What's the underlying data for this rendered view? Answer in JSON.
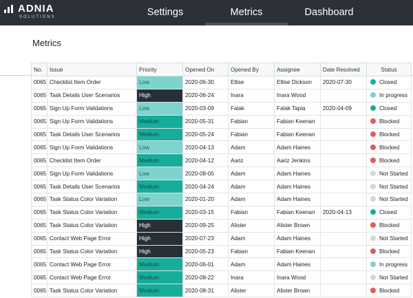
{
  "header": {
    "logo": "ADNIA",
    "logo_sub": "SOLUTIONS",
    "nav": [
      "Settings",
      "Metrics",
      "Dashboard"
    ],
    "active": 1
  },
  "page_title": "Metrics",
  "table": {
    "columns": [
      "No.",
      "Issue",
      "Priority",
      "Opened On",
      "Opened By",
      "Assignee",
      "Date Resolved",
      "Status"
    ],
    "rows": [
      [
        "0065",
        "Checklist Item Order",
        "Low",
        "2020-06-30",
        "Ellise",
        "Ellise Dickson",
        "2020-07-30",
        "Closed"
      ],
      [
        "0065",
        "Task Details User Scenarios",
        "High",
        "2020-06-24",
        "Inara",
        "Inara Wood",
        null,
        "In progress"
      ],
      [
        "0065",
        "Sign Up Form Validations",
        "Low",
        "2020-03-09",
        "Falak",
        "Falak Tapia",
        "2020-04-09",
        "Closed"
      ],
      [
        "0065",
        "Sign Up Form Validations",
        "Medium",
        "2020-05-31",
        "Fabian",
        "Fabian Keenan",
        null,
        "Blocked"
      ],
      [
        "0065",
        "Task Details User Scenarios",
        "Medium",
        "2020-05-24",
        "Fabian",
        "Fabian Keenan",
        null,
        "Blocked"
      ],
      [
        "0065",
        "Sign Up Form Validations",
        "Low",
        "2020-04-13",
        "Adam",
        "Adam Haines",
        null,
        "Blocked"
      ],
      [
        "0065",
        "Checklist Item Order",
        "Medium",
        "2020-04-12",
        "Aariz",
        "Aariz Jenkins",
        null,
        "Blocked"
      ],
      [
        "0065",
        "Sign Up Form Validations",
        "Low",
        "2020-08-05",
        "Adam",
        "Adam Haines",
        null,
        "Not Started"
      ],
      [
        "0065",
        "Task Details User Scenarios",
        "Medium",
        "2020-04-24",
        "Adam",
        "Adam Haines",
        null,
        "Not Started"
      ],
      [
        "0065",
        "Task Status Color Variation",
        "Low",
        "2020-01-20",
        "Adam",
        "Adam Haines",
        null,
        "Not Started"
      ],
      [
        "0065",
        "Task Status Color Variation",
        "Medium",
        "2020-03-15",
        "Fabian",
        "Fabian Keenan",
        "2020-04-13",
        "Closed"
      ],
      [
        "0065",
        "Task Status Color Variation",
        "High",
        "2020-09-25",
        "Alister",
        "Alister Brown",
        null,
        "Blocked"
      ],
      [
        "0065",
        "Contact Web Page Error",
        "High",
        "2020-07-23",
        "Adam",
        "Adam Haines",
        null,
        "Not Started"
      ],
      [
        "0065",
        "Task Status Color Variation",
        "High",
        "2020-05-23",
        "Fabian",
        "Fabian Keenan",
        null,
        "Blocked"
      ],
      [
        "0065",
        "Contact Web Page Error",
        "Medium",
        "2020-06-01",
        "Adam",
        "Adam Haines",
        null,
        "In progress"
      ],
      [
        "0065",
        "Contact Web Page Error",
        "Medium",
        "2020-08-22",
        "Inara",
        "Inara Wood",
        null,
        "Not Started"
      ],
      [
        "0065",
        "Task Status Color Variation",
        "Medium",
        "2020-08-31",
        "Alister",
        "Alister Brown",
        null,
        "Blocked"
      ]
    ]
  }
}
